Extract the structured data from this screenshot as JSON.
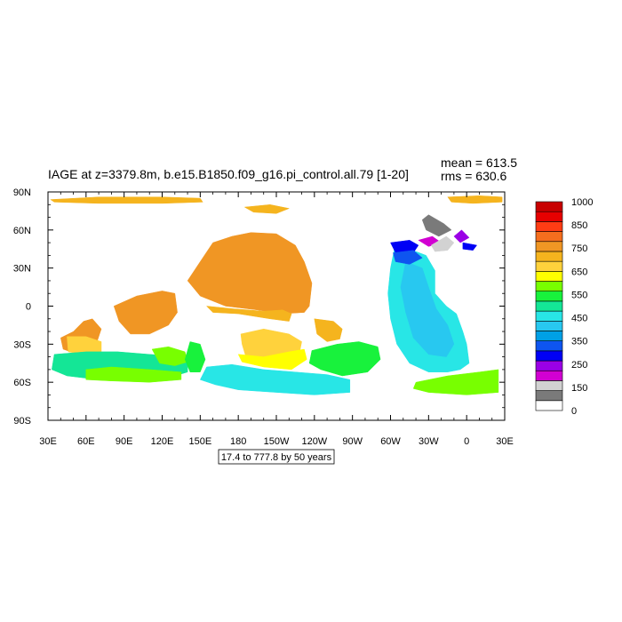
{
  "chart_data": {
    "type": "heatmap",
    "title": "IAGE at z=3379.8m, b.e15.B1850.f09_g16.pi_control.all.79 [1-20]",
    "stats": {
      "mean": "mean = 613.5",
      "rms": "rms = 630.6"
    },
    "contour_info": "17.4 to 777.8 by 50 years",
    "x_ticks": [
      "30E",
      "60E",
      "90E",
      "120E",
      "150E",
      "180",
      "150W",
      "120W",
      "90W",
      "60W",
      "30W",
      "0",
      "30E"
    ],
    "y_ticks": [
      "90N",
      "60N",
      "30N",
      "0",
      "30S",
      "60S",
      "90S"
    ],
    "xlim": [
      30,
      390
    ],
    "ylim": [
      -90,
      90
    ],
    "colorbar": {
      "labels": [
        "1000",
        "850",
        "750",
        "650",
        "550",
        "450",
        "350",
        "250",
        "150",
        "0"
      ],
      "colors": [
        "#ffffff",
        "#7a7a7a",
        "#d2d2d2",
        "#d200d2",
        "#9b00e6",
        "#0000f5",
        "#0e55f0",
        "#00a0e6",
        "#28c8f0",
        "#28e6e6",
        "#14e696",
        "#18f23c",
        "#78ff00",
        "#ffff00",
        "#ffd23c",
        "#f5b41e",
        "#f09624",
        "#f56e1e",
        "#ff3c14",
        "#e60000",
        "#c80000"
      ]
    },
    "regions": [
      {
        "c": "#f09624",
        "pts": [
          [
            40,
            -25
          ],
          [
            50,
            -20
          ],
          [
            58,
            -12
          ],
          [
            65,
            -10
          ],
          [
            72,
            -18
          ],
          [
            68,
            -30
          ],
          [
            60,
            -34
          ],
          [
            48,
            -36
          ],
          [
            42,
            -34
          ]
        ]
      },
      {
        "c": "#f09624",
        "pts": [
          [
            82,
            0
          ],
          [
            100,
            8
          ],
          [
            120,
            12
          ],
          [
            130,
            10
          ],
          [
            132,
            -5
          ],
          [
            125,
            -15
          ],
          [
            110,
            -22
          ],
          [
            95,
            -22
          ],
          [
            86,
            -12
          ]
        ]
      },
      {
        "c": "#f09624",
        "pts": [
          [
            140,
            20
          ],
          [
            150,
            35
          ],
          [
            160,
            50
          ],
          [
            175,
            55
          ],
          [
            190,
            58
          ],
          [
            210,
            57
          ],
          [
            225,
            48
          ],
          [
            232,
            35
          ],
          [
            238,
            18
          ],
          [
            236,
            0
          ],
          [
            232,
            -5
          ],
          [
            215,
            -6
          ],
          [
            195,
            -3
          ],
          [
            170,
            0
          ],
          [
            150,
            8
          ]
        ]
      },
      {
        "c": "#f5b41e",
        "pts": [
          [
            155,
            0
          ],
          [
            175,
            -2
          ],
          [
            200,
            -4
          ],
          [
            215,
            -3
          ],
          [
            222,
            -6
          ],
          [
            220,
            -12
          ],
          [
            205,
            -10
          ],
          [
            180,
            -6
          ],
          [
            160,
            -5
          ]
        ]
      },
      {
        "c": "#ffd23c",
        "pts": [
          [
            182,
            -22
          ],
          [
            200,
            -18
          ],
          [
            220,
            -22
          ],
          [
            230,
            -28
          ],
          [
            228,
            -38
          ],
          [
            215,
            -42
          ],
          [
            198,
            -44
          ],
          [
            186,
            -40
          ],
          [
            183,
            -30
          ]
        ]
      },
      {
        "c": "#ffff00",
        "pts": [
          [
            180,
            -38
          ],
          [
            200,
            -40
          ],
          [
            220,
            -36
          ],
          [
            232,
            -34
          ],
          [
            234,
            -42
          ],
          [
            222,
            -50
          ],
          [
            200,
            -48
          ],
          [
            183,
            -44
          ]
        ]
      },
      {
        "c": "#ffd23c",
        "pts": [
          [
            45,
            -24
          ],
          [
            60,
            -24
          ],
          [
            72,
            -28
          ],
          [
            72,
            -36
          ],
          [
            58,
            -38
          ],
          [
            46,
            -36
          ]
        ]
      },
      {
        "c": "#f5b41e",
        "pts": [
          [
            240,
            -10
          ],
          [
            255,
            -12
          ],
          [
            262,
            -18
          ],
          [
            260,
            -26
          ],
          [
            250,
            -28
          ],
          [
            242,
            -22
          ]
        ]
      },
      {
        "c": "#14e696",
        "pts": [
          [
            35,
            -38
          ],
          [
            60,
            -36
          ],
          [
            85,
            -36
          ],
          [
            110,
            -38
          ],
          [
            140,
            -40
          ],
          [
            140,
            -52
          ],
          [
            120,
            -58
          ],
          [
            95,
            -58
          ],
          [
            70,
            -58
          ],
          [
            45,
            -55
          ],
          [
            33,
            -50
          ]
        ]
      },
      {
        "c": "#78ff00",
        "pts": [
          [
            60,
            -50
          ],
          [
            80,
            -48
          ],
          [
            110,
            -50
          ],
          [
            135,
            -52
          ],
          [
            135,
            -58
          ],
          [
            110,
            -60
          ],
          [
            80,
            -59
          ],
          [
            60,
            -58
          ]
        ]
      },
      {
        "c": "#78ff00",
        "pts": [
          [
            112,
            -34
          ],
          [
            125,
            -32
          ],
          [
            138,
            -36
          ],
          [
            140,
            -44
          ],
          [
            130,
            -47
          ],
          [
            118,
            -45
          ]
        ]
      },
      {
        "c": "#18f23c",
        "pts": [
          [
            142,
            -28
          ],
          [
            150,
            -30
          ],
          [
            154,
            -42
          ],
          [
            150,
            -52
          ],
          [
            142,
            -52
          ],
          [
            138,
            -42
          ]
        ]
      },
      {
        "c": "#18f23c",
        "pts": [
          [
            238,
            -35
          ],
          [
            258,
            -30
          ],
          [
            275,
            -28
          ],
          [
            290,
            -32
          ],
          [
            292,
            -42
          ],
          [
            282,
            -52
          ],
          [
            262,
            -55
          ],
          [
            245,
            -50
          ],
          [
            236,
            -45
          ]
        ]
      },
      {
        "c": "#28e6e6",
        "pts": [
          [
            155,
            -48
          ],
          [
            175,
            -46
          ],
          [
            200,
            -50
          ],
          [
            225,
            -52
          ],
          [
            250,
            -54
          ],
          [
            268,
            -58
          ],
          [
            268,
            -68
          ],
          [
            240,
            -70
          ],
          [
            210,
            -68
          ],
          [
            180,
            -66
          ],
          [
            162,
            -62
          ],
          [
            150,
            -58
          ]
        ]
      },
      {
        "c": "#28e6e6",
        "pts": [
          [
            303,
            45
          ],
          [
            315,
            45
          ],
          [
            328,
            40
          ],
          [
            335,
            28
          ],
          [
            335,
            10
          ],
          [
            344,
            0
          ],
          [
            352,
            -6
          ],
          [
            357,
            -20
          ],
          [
            360,
            -30
          ],
          [
            362,
            -45
          ],
          [
            355,
            -50
          ],
          [
            345,
            -52
          ],
          [
            330,
            -52
          ],
          [
            315,
            -45
          ],
          [
            305,
            -30
          ],
          [
            300,
            -10
          ],
          [
            298,
            10
          ],
          [
            300,
            30
          ]
        ]
      },
      {
        "c": "#28c8f0",
        "pts": [
          [
            312,
            35
          ],
          [
            325,
            30
          ],
          [
            330,
            15
          ],
          [
            336,
            -2
          ],
          [
            345,
            -15
          ],
          [
            350,
            -30
          ],
          [
            344,
            -40
          ],
          [
            330,
            -38
          ],
          [
            318,
            -25
          ],
          [
            312,
            -5
          ],
          [
            308,
            15
          ]
        ]
      },
      {
        "c": "#0000f5",
        "pts": [
          [
            300,
            50
          ],
          [
            315,
            52
          ],
          [
            322,
            48
          ],
          [
            318,
            42
          ],
          [
            305,
            40
          ]
        ]
      },
      {
        "c": "#0e55f0",
        "pts": [
          [
            302,
            42
          ],
          [
            318,
            44
          ],
          [
            325,
            38
          ],
          [
            315,
            33
          ],
          [
            304,
            35
          ]
        ]
      },
      {
        "c": "#d200d2",
        "pts": [
          [
            322,
            52
          ],
          [
            333,
            55
          ],
          [
            340,
            50
          ],
          [
            330,
            47
          ]
        ]
      },
      {
        "c": "#9b00e6",
        "pts": [
          [
            350,
            55
          ],
          [
            356,
            60
          ],
          [
            362,
            54
          ],
          [
            355,
            50
          ]
        ]
      },
      {
        "c": "#0000f5",
        "pts": [
          [
            357,
            50
          ],
          [
            368,
            48
          ],
          [
            365,
            44
          ],
          [
            357,
            45
          ]
        ]
      },
      {
        "c": "#d2d2d2",
        "pts": [
          [
            332,
            48
          ],
          [
            344,
            55
          ],
          [
            350,
            50
          ],
          [
            345,
            44
          ],
          [
            335,
            43
          ]
        ]
      },
      {
        "c": "#7a7a7a",
        "pts": [
          [
            325,
            68
          ],
          [
            330,
            72
          ],
          [
            342,
            65
          ],
          [
            348,
            60
          ],
          [
            338,
            55
          ],
          [
            328,
            60
          ]
        ]
      },
      {
        "c": "#78ff00",
        "pts": [
          [
            320,
            -60
          ],
          [
            345,
            -55
          ],
          [
            370,
            -52
          ],
          [
            385,
            -50
          ],
          [
            385,
            -68
          ],
          [
            360,
            -70
          ],
          [
            330,
            -68
          ],
          [
            318,
            -65
          ]
        ]
      },
      {
        "c": "#f5b41e",
        "pts": [
          [
            32,
            84
          ],
          [
            70,
            86
          ],
          [
            120,
            86
          ],
          [
            150,
            85
          ],
          [
            152,
            82
          ],
          [
            120,
            81
          ],
          [
            70,
            81
          ],
          [
            35,
            82
          ]
        ]
      },
      {
        "c": "#f5b41e",
        "pts": [
          [
            185,
            78
          ],
          [
            205,
            80
          ],
          [
            220,
            77
          ],
          [
            210,
            73
          ],
          [
            192,
            74
          ]
        ]
      },
      {
        "c": "#f5b41e",
        "pts": [
          [
            345,
            86
          ],
          [
            370,
            87
          ],
          [
            388,
            86
          ],
          [
            388,
            82
          ],
          [
            365,
            81
          ],
          [
            348,
            82
          ]
        ]
      }
    ]
  }
}
